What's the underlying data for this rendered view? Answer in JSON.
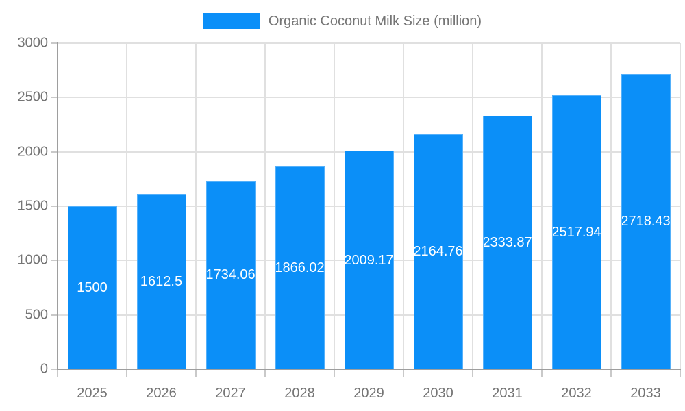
{
  "legend": {
    "label": "Organic Coconut Milk Size (million)"
  },
  "chart_data": {
    "type": "bar",
    "title": "Organic Coconut Milk Size (million)",
    "categories": [
      "2025",
      "2026",
      "2027",
      "2028",
      "2029",
      "2030",
      "2031",
      "2032",
      "2033"
    ],
    "values": [
      1500,
      1612.5,
      1734.06,
      1866.02,
      2009.17,
      2164.76,
      2333.87,
      2517.94,
      2718.43
    ],
    "value_labels": [
      "1500",
      "1612.5",
      "1734.06",
      "1866.02",
      "2009.17",
      "2164.76",
      "2333.87",
      "2517.94",
      "2718.43"
    ],
    "xlabel": "",
    "ylabel": "",
    "ylim": [
      0,
      3000
    ],
    "yticks": [
      0,
      500,
      1000,
      1500,
      2000,
      2500,
      3000
    ],
    "grid": true,
    "legend_position": "top",
    "colors": {
      "bar": "#0b8ff8",
      "bar_label": "#ffffff",
      "axis_text": "#757575",
      "axis_line": "#9e9e9e",
      "gridline": "#e0e0e0",
      "tick": "#c9c9c9",
      "background": "#ffffff"
    }
  }
}
